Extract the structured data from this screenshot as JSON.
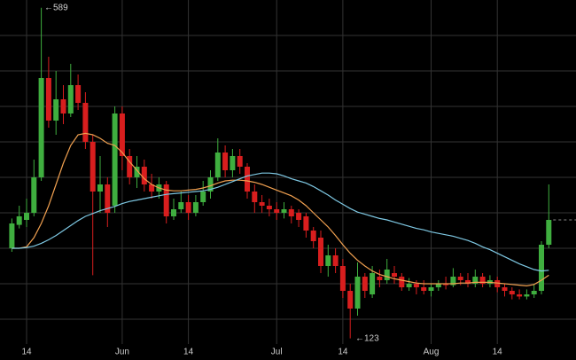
{
  "chart_data": {
    "type": "candlestick",
    "categories": [
      null,
      null,
      "14",
      null,
      null,
      null,
      null,
      null,
      null,
      null,
      null,
      null,
      null,
      null,
      null,
      "Jun",
      null,
      null,
      null,
      null,
      null,
      null,
      null,
      null,
      "14",
      null,
      null,
      null,
      null,
      null,
      null,
      null,
      null,
      null,
      null,
      null,
      "Jul",
      null,
      null,
      null,
      null,
      null,
      null,
      null,
      null,
      "14",
      null,
      null,
      null,
      null,
      null,
      null,
      null,
      null,
      null,
      null,
      null,
      "Aug",
      null,
      null,
      null,
      null,
      null,
      null,
      null,
      null,
      "14",
      null,
      null,
      null,
      null,
      null,
      null,
      null
    ],
    "open": [
      250,
      283,
      290,
      300,
      350,
      490,
      430,
      460,
      440,
      480,
      455,
      400,
      330,
      340,
      310,
      440,
      380,
      350,
      365,
      340,
      330,
      340,
      295,
      305,
      315,
      300,
      315,
      330,
      350,
      385,
      360,
      380,
      365,
      330,
      315,
      310,
      305,
      300,
      305,
      300,
      295,
      275,
      265,
      225,
      240,
      225,
      190,
      165,
      210,
      185,
      210,
      205,
      215,
      210,
      195,
      200,
      195,
      190,
      195,
      200,
      198,
      210,
      205,
      200,
      210,
      200,
      205,
      195,
      190,
      185,
      182,
      185,
      190,
      255
    ],
    "high": [
      292,
      310,
      320,
      375,
      589,
      520,
      500,
      480,
      510,
      495,
      470,
      410,
      380,
      350,
      450,
      450,
      390,
      380,
      375,
      355,
      350,
      345,
      320,
      330,
      325,
      325,
      345,
      360,
      405,
      395,
      390,
      390,
      370,
      340,
      325,
      320,
      315,
      315,
      310,
      305,
      300,
      280,
      275,
      255,
      250,
      235,
      200,
      230,
      215,
      225,
      220,
      235,
      225,
      215,
      208,
      205,
      205,
      200,
      205,
      210,
      222,
      215,
      215,
      220,
      215,
      212,
      210,
      200,
      195,
      192,
      192,
      200,
      260,
      340
    ],
    "low": [
      245,
      278,
      280,
      295,
      345,
      420,
      410,
      425,
      435,
      445,
      390,
      212,
      300,
      280,
      300,
      360,
      340,
      335,
      330,
      320,
      320,
      285,
      290,
      300,
      290,
      295,
      310,
      320,
      345,
      350,
      350,
      355,
      320,
      300,
      300,
      295,
      290,
      292,
      285,
      280,
      265,
      250,
      215,
      210,
      215,
      180,
      123,
      155,
      180,
      180,
      195,
      200,
      200,
      190,
      190,
      185,
      185,
      182,
      190,
      192,
      195,
      198,
      195,
      195,
      195,
      195,
      188,
      182,
      178,
      178,
      178,
      180,
      185,
      250
    ],
    "close": [
      285,
      295,
      300,
      350,
      490,
      430,
      460,
      440,
      480,
      455,
      400,
      330,
      340,
      300,
      440,
      380,
      350,
      365,
      340,
      330,
      340,
      295,
      305,
      315,
      300,
      315,
      330,
      350,
      385,
      360,
      380,
      365,
      330,
      315,
      310,
      305,
      300,
      305,
      295,
      290,
      275,
      260,
      225,
      240,
      225,
      190,
      165,
      210,
      190,
      215,
      205,
      220,
      210,
      195,
      200,
      195,
      190,
      195,
      200,
      198,
      210,
      205,
      200,
      210,
      200,
      205,
      195,
      190,
      185,
      182,
      185,
      190,
      255,
      290
    ],
    "up_color": "#3fae3f",
    "down_color": "#d81e1e",
    "moving_averages": [
      {
        "color": "#f0a050",
        "values": [
          250,
          250,
          252,
          265,
          285,
          310,
          340,
          370,
          395,
          410,
          412,
          410,
          405,
          398,
          395,
          385,
          372,
          360,
          348,
          340,
          335,
          332,
          331,
          331,
          332,
          333,
          335,
          338,
          342,
          345,
          346,
          346,
          345,
          343,
          340,
          336,
          332,
          328,
          324,
          318,
          310,
          300,
          290,
          280,
          268,
          255,
          243,
          233,
          225,
          218,
          213,
          210,
          207,
          205,
          203,
          201,
          200,
          200,
          200,
          200,
          200,
          201,
          201,
          202,
          202,
          202,
          201,
          200,
          199,
          198,
          197,
          199,
          205,
          212
        ]
      },
      {
        "color": "#7ec8e3",
        "values": [
          250,
          250,
          251,
          253,
          257,
          262,
          268,
          275,
          282,
          289,
          295,
          299,
          303,
          306,
          309,
          313,
          316,
          318,
          320,
          322,
          324,
          326,
          327,
          328,
          329,
          330,
          331,
          333,
          336,
          340,
          344,
          348,
          352,
          354,
          356,
          356,
          355,
          352,
          348,
          345,
          342,
          337,
          331,
          325,
          318,
          312,
          306,
          301,
          298,
          295,
          292,
          290,
          287,
          284,
          281,
          278,
          276,
          273,
          271,
          269,
          267,
          264,
          261,
          257,
          252,
          248,
          243,
          238,
          233,
          228,
          224,
          220,
          218,
          219
        ]
      }
    ],
    "annotations": [
      "←589",
      "←123"
    ],
    "ylim": [
      115,
      600
    ],
    "yticks": [
      150,
      200,
      250,
      300,
      350,
      400,
      450,
      500,
      550
    ],
    "grid": true
  }
}
